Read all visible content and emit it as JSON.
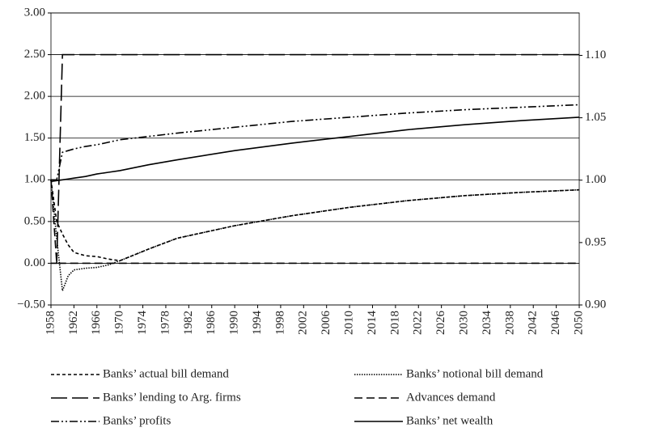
{
  "chart_data": {
    "type": "line",
    "x": [
      1958,
      1959,
      1960,
      1961,
      1962,
      1964,
      1966,
      1968,
      1970,
      1975,
      1980,
      1990,
      2000,
      2010,
      2020,
      2030,
      2040,
      2050
    ],
    "xlim": [
      1958,
      2050
    ],
    "xticks": [
      1958,
      1962,
      1966,
      1970,
      1974,
      1978,
      1982,
      1986,
      1990,
      1994,
      1998,
      2002,
      2006,
      2010,
      2014,
      2018,
      2022,
      2026,
      2030,
      2034,
      2038,
      2042,
      2046,
      2050
    ],
    "ylim": [
      -0.5,
      3.0
    ],
    "yticks": [
      {
        "value": -0.5,
        "label": "−0.50"
      },
      {
        "value": 0,
        "label": "0.00"
      },
      {
        "value": 0.5,
        "label": "0.50"
      },
      {
        "value": 1.0,
        "label": "1.00"
      },
      {
        "value": 1.5,
        "label": "1.50"
      },
      {
        "value": 2.0,
        "label": "2.00"
      },
      {
        "value": 2.5,
        "label": "2.50"
      },
      {
        "value": 3.0,
        "label": "3.00"
      }
    ],
    "y2lim": [
      0.9,
      1.134
    ],
    "y2ticks": [
      {
        "value": 0.9,
        "label": "0.90"
      },
      {
        "value": 0.95,
        "label": "0.95"
      },
      {
        "value": 1.0,
        "label": "1.00"
      },
      {
        "value": 1.05,
        "label": "1.05"
      },
      {
        "value": 1.1,
        "label": "1.10"
      }
    ],
    "grid": true,
    "legend": "bottom",
    "series": [
      {
        "name": "Banks’ actual bill demand",
        "color": "#000000",
        "dash": "4,3",
        "values": [
          1,
          0.5,
          0.35,
          0.22,
          0.13,
          0.09,
          0.08,
          0.05,
          0.03,
          0.17,
          0.3,
          0.45,
          0.57,
          0.67,
          0.75,
          0.81,
          0.85,
          0.88
        ]
      },
      {
        "name": "Banks’ notional bill demand",
        "color": "#000000",
        "dash": "1.5,1.5",
        "values": [
          1,
          0.3,
          -0.33,
          -0.15,
          -0.08,
          -0.06,
          -0.05,
          -0.02,
          0.03,
          0.17,
          0.3,
          0.45,
          0.57,
          0.67,
          0.75,
          0.81,
          0.85,
          0.88
        ]
      },
      {
        "name": "Banks’ lending to Arg. firms",
        "color": "#000000",
        "dash": "20,6",
        "values": [
          0,
          0,
          2.5,
          2.5,
          2.5,
          2.5,
          2.5,
          2.5,
          2.5,
          2.5,
          2.5,
          2.5,
          2.5,
          2.5,
          2.5,
          2.5,
          2.5,
          2.5
        ]
      },
      {
        "name": "Advances demand",
        "color": "#000000",
        "dash": "10,5",
        "values": [
          1,
          0,
          0,
          0,
          0,
          0,
          0,
          0,
          0,
          0,
          0,
          0,
          0,
          0,
          0,
          0,
          0,
          0
        ]
      },
      {
        "name": "Banks’ profits",
        "color": "#000000",
        "dash": "10,3,2,3,2,3",
        "values": [
          1,
          1,
          1.33,
          1.35,
          1.37,
          1.4,
          1.42,
          1.45,
          1.48,
          1.52,
          1.56,
          1.63,
          1.7,
          1.75,
          1.8,
          1.84,
          1.87,
          1.9
        ]
      },
      {
        "name": "Banks’ net wealth",
        "color": "#000000",
        "dash": "none",
        "values": [
          0.98,
          0.99,
          1.0,
          1.01,
          1.02,
          1.04,
          1.07,
          1.09,
          1.11,
          1.18,
          1.24,
          1.35,
          1.44,
          1.52,
          1.6,
          1.66,
          1.71,
          1.75
        ]
      }
    ]
  }
}
